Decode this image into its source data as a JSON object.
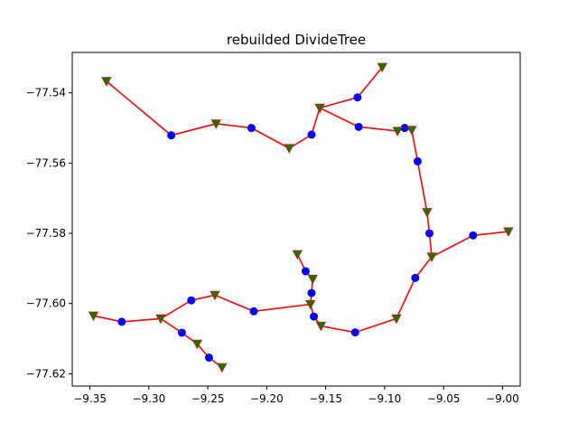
{
  "chart_data": {
    "type": "line",
    "title": "rebuilded DivideTree",
    "xlabel": "",
    "ylabel": "",
    "xlim": [
      -9.365,
      -8.985
    ],
    "ylim": [
      -77.6235,
      -77.5285
    ],
    "grid": false,
    "x_ticks": [
      -9.35,
      -9.3,
      -9.25,
      -9.2,
      -9.15,
      -9.1,
      -9.05,
      -9.0
    ],
    "x_tick_labels": [
      "−9.35",
      "−9.30",
      "−9.25",
      "−9.20",
      "−9.15",
      "−9.10",
      "−9.05",
      "−9.00"
    ],
    "y_ticks": [
      -77.54,
      -77.56,
      -77.58,
      -77.6,
      -77.62
    ],
    "y_tick_labels": [
      "−77.54",
      "−77.56",
      "−77.58",
      "−77.60",
      "−77.62"
    ],
    "colors": {
      "edge": "#ff0000",
      "peak": "#0000ff",
      "saddle": "#008000",
      "saddle_edge": "#ff0000"
    },
    "peaks": [
      [
        -9.281,
        -77.5521
      ],
      [
        -9.213,
        -77.55
      ],
      [
        -9.162,
        -77.5519
      ],
      [
        -9.123,
        -77.5413
      ],
      [
        -9.122,
        -77.5497
      ],
      [
        -9.083,
        -77.55
      ],
      [
        -9.072,
        -77.5595
      ],
      [
        -9.062,
        -77.58
      ],
      [
        -9.025,
        -77.5806
      ],
      [
        -9.074,
        -77.5927
      ],
      [
        -9.167,
        -77.5908
      ],
      [
        -9.162,
        -77.597
      ],
      [
        -9.16,
        -77.6037
      ],
      [
        -9.125,
        -77.6082
      ],
      [
        -9.211,
        -77.6022
      ],
      [
        -9.264,
        -77.5991
      ],
      [
        -9.272,
        -77.6083
      ],
      [
        -9.323,
        -77.6052
      ],
      [
        -9.249,
        -77.6154
      ]
    ],
    "saddles": [
      [
        -9.336,
        -77.5367
      ],
      [
        -9.243,
        -77.5488
      ],
      [
        -9.181,
        -77.5558
      ],
      [
        -9.155,
        -77.5443
      ],
      [
        -9.102,
        -77.5327
      ],
      [
        -9.089,
        -77.5509
      ],
      [
        -9.077,
        -77.5506
      ],
      [
        -9.064,
        -77.574
      ],
      [
        -9.06,
        -77.5867
      ],
      [
        -8.995,
        -77.5795
      ],
      [
        -9.174,
        -77.586
      ],
      [
        -9.161,
        -77.593
      ],
      [
        -9.163,
        -77.6002
      ],
      [
        -9.154,
        -77.6064
      ],
      [
        -9.09,
        -77.6043
      ],
      [
        -9.244,
        -77.5976
      ],
      [
        -9.29,
        -77.6043
      ],
      [
        -9.347,
        -77.6035
      ],
      [
        -9.259,
        -77.6115
      ],
      [
        -9.238,
        -77.6182
      ]
    ],
    "edges": [
      [
        [
          -9.336,
          -77.5367
        ],
        [
          -9.281,
          -77.5521
        ],
        [
          -9.243,
          -77.5488
        ],
        [
          -9.213,
          -77.55
        ],
        [
          -9.181,
          -77.5558
        ],
        [
          -9.162,
          -77.5519
        ],
        [
          -9.155,
          -77.5443
        ],
        [
          -9.123,
          -77.5413
        ],
        [
          -9.102,
          -77.5327
        ]
      ],
      [
        [
          -9.155,
          -77.5443
        ],
        [
          -9.122,
          -77.5497
        ],
        [
          -9.089,
          -77.5509
        ],
        [
          -9.083,
          -77.55
        ],
        [
          -9.077,
          -77.5506
        ],
        [
          -9.072,
          -77.5595
        ],
        [
          -9.064,
          -77.574
        ],
        [
          -9.062,
          -77.58
        ],
        [
          -9.06,
          -77.5867
        ]
      ],
      [
        [
          -9.06,
          -77.5867
        ],
        [
          -9.025,
          -77.5806
        ],
        [
          -8.995,
          -77.5795
        ]
      ],
      [
        [
          -9.06,
          -77.5867
        ],
        [
          -9.074,
          -77.5927
        ],
        [
          -9.09,
          -77.6043
        ],
        [
          -9.125,
          -77.6082
        ],
        [
          -9.154,
          -77.6064
        ],
        [
          -9.16,
          -77.6037
        ],
        [
          -9.163,
          -77.6002
        ],
        [
          -9.162,
          -77.597
        ],
        [
          -9.161,
          -77.593
        ],
        [
          -9.167,
          -77.5908
        ],
        [
          -9.174,
          -77.586
        ]
      ],
      [
        [
          -9.163,
          -77.6002
        ],
        [
          -9.211,
          -77.6022
        ],
        [
          -9.244,
          -77.5976
        ],
        [
          -9.264,
          -77.5991
        ],
        [
          -9.29,
          -77.6043
        ],
        [
          -9.323,
          -77.6052
        ],
        [
          -9.347,
          -77.6035
        ]
      ],
      [
        [
          -9.29,
          -77.6043
        ],
        [
          -9.272,
          -77.6083
        ],
        [
          -9.259,
          -77.6115
        ],
        [
          -9.249,
          -77.6154
        ],
        [
          -9.238,
          -77.6182
        ]
      ]
    ]
  }
}
